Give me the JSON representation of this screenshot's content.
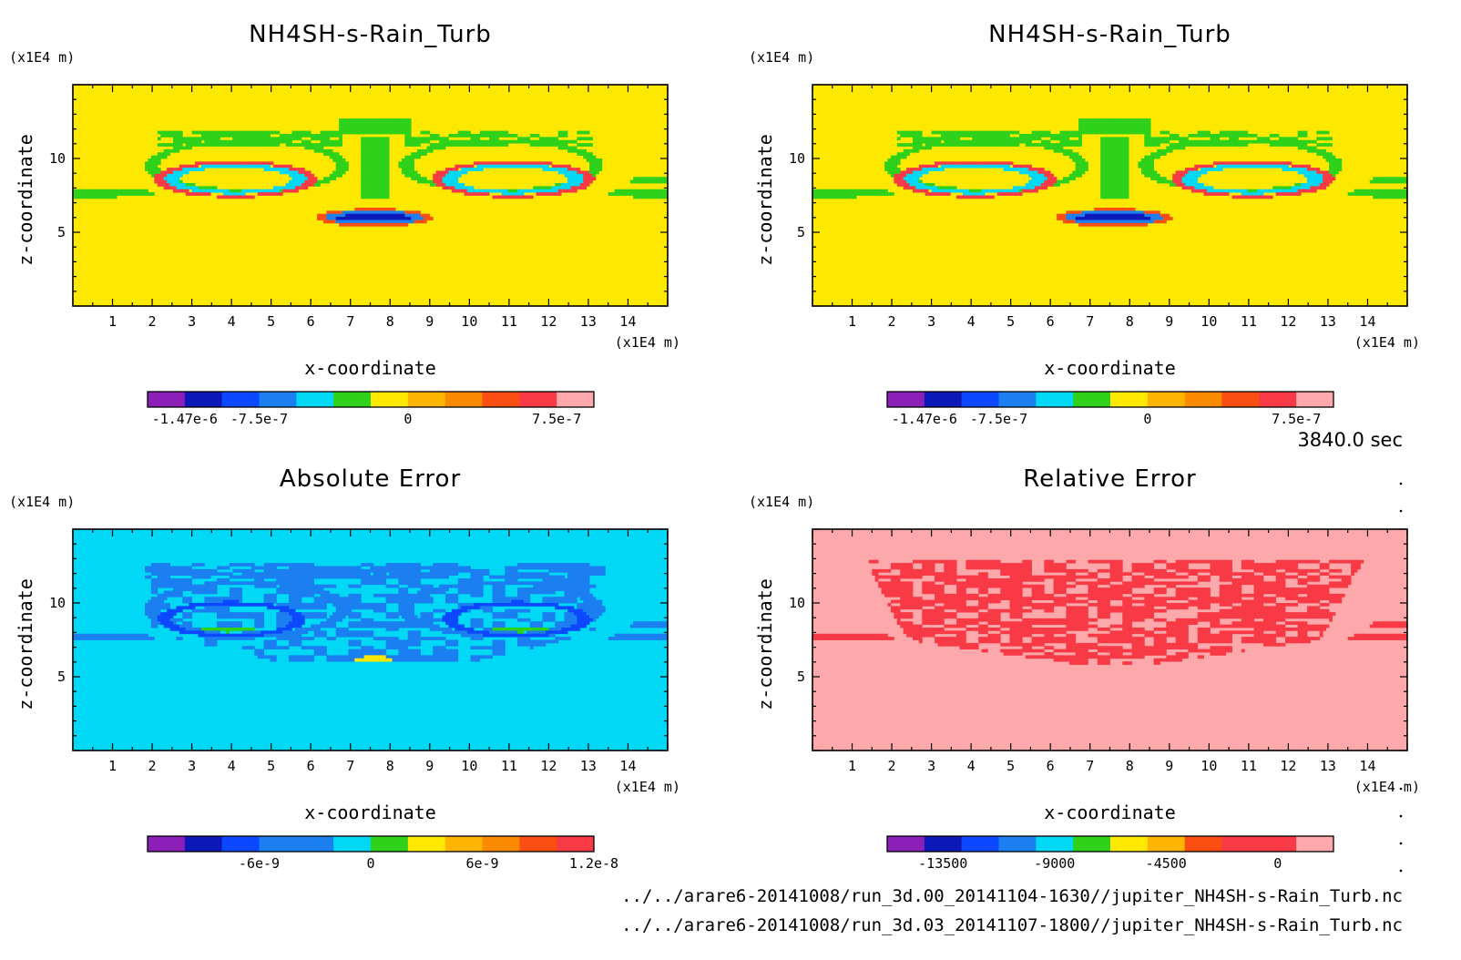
{
  "figure": {
    "time_label": "3840.0 sec",
    "files": [
      "../../arare6-20141008/run_3d.00_20141104-1630//jupiter_NH4SH-s-Rain_Turb.nc",
      "../../arare6-20141008/run_3d.03_20141107-1800//jupiter_NH4SH-s-Rain_Turb.nc"
    ]
  },
  "chart_data": [
    {
      "type": "heatmap",
      "id": "top-left",
      "title": "NH4SH-s-Rain_Turb",
      "xlabel": "x-coordinate",
      "ylabel": "z-coordinate",
      "x_unit": "(x1E4 m)",
      "y_unit": "(x1E4 m)",
      "xlim": [
        0,
        15
      ],
      "ylim": [
        0,
        15
      ],
      "xticks": [
        1,
        2,
        3,
        4,
        5,
        6,
        7,
        8,
        9,
        10,
        11,
        12,
        13,
        14
      ],
      "yticks": [
        5,
        10
      ],
      "pattern": "field",
      "background_level": 6,
      "colorbar": {
        "colors": [
          "#8b1fb8",
          "#0d18b8",
          "#0c48ff",
          "#1b7ff0",
          "#00d8f5",
          "#2fd11a",
          "#fde802",
          "#fdb501",
          "#fa8a00",
          "#fa4e12",
          "#f83a46",
          "#fda9ab"
        ],
        "labels": [
          "-1.47e-6",
          "-7.5e-7",
          "0",
          "7.5e-7"
        ],
        "label_boundaries": [
          0,
          2,
          6,
          10
        ]
      }
    },
    {
      "type": "heatmap",
      "id": "top-right",
      "title": "NH4SH-s-Rain_Turb",
      "xlabel": "x-coordinate",
      "ylabel": "z-coordinate",
      "x_unit": "(x1E4 m)",
      "y_unit": "(x1E4 m)",
      "xlim": [
        0,
        15
      ],
      "ylim": [
        0,
        15
      ],
      "xticks": [
        1,
        2,
        3,
        4,
        5,
        6,
        7,
        8,
        9,
        10,
        11,
        12,
        13,
        14
      ],
      "yticks": [
        5,
        10
      ],
      "pattern": "field",
      "background_level": 6,
      "colorbar": {
        "colors": [
          "#8b1fb8",
          "#0d18b8",
          "#0c48ff",
          "#1b7ff0",
          "#00d8f5",
          "#2fd11a",
          "#fde802",
          "#fdb501",
          "#fa8a00",
          "#fa4e12",
          "#f83a46",
          "#fda9ab"
        ],
        "labels": [
          "-1.47e-6",
          "-7.5e-7",
          "0",
          "7.5e-7"
        ],
        "label_boundaries": [
          0,
          2,
          6,
          10
        ]
      }
    },
    {
      "type": "heatmap",
      "id": "bottom-left",
      "title": "Absolute Error",
      "xlabel": "x-coordinate",
      "ylabel": "z-coordinate",
      "x_unit": "(x1E4 m)",
      "y_unit": "(x1E4 m)",
      "xlim": [
        0,
        15
      ],
      "ylim": [
        0,
        15
      ],
      "xticks": [
        1,
        2,
        3,
        4,
        5,
        6,
        7,
        8,
        9,
        10,
        11,
        12,
        13,
        14
      ],
      "yticks": [
        5,
        10
      ],
      "pattern": "abs",
      "background_level": 5,
      "colorbar": {
        "colors": [
          "#8b1fb8",
          "#0d18b8",
          "#0c48ff",
          "#1b7ff0",
          "#1b7ff0",
          "#00d8f5",
          "#2fd11a",
          "#fde802",
          "#fdb501",
          "#fa8a00",
          "#fa4e12",
          "#f83a46"
        ],
        "labels": [
          "-6e-9",
          "0",
          "6e-9",
          "1.2e-8"
        ],
        "label_boundaries": [
          2,
          5,
          8,
          11
        ]
      }
    },
    {
      "type": "heatmap",
      "id": "bottom-right",
      "title": "Relative Error",
      "xlabel": "x-coordinate",
      "ylabel": "z-coordinate",
      "x_unit": "(x1E4 m)",
      "y_unit": "(x1E4 m)",
      "xlim": [
        0,
        15
      ],
      "ylim": [
        0,
        15
      ],
      "xticks": [
        1,
        2,
        3,
        4,
        5,
        6,
        7,
        8,
        9,
        10,
        11,
        12,
        13,
        14
      ],
      "yticks": [
        5,
        10
      ],
      "pattern": "rel",
      "background_level": 11,
      "colorbar": {
        "colors": [
          "#8b1fb8",
          "#0d18b8",
          "#0c48ff",
          "#1b7ff0",
          "#00d8f5",
          "#2fd11a",
          "#fde802",
          "#fdb501",
          "#fa4e12",
          "#f83a46",
          "#f83a46",
          "#fda9ab"
        ],
        "labels": [
          "-13500",
          "-9000",
          "-4500",
          "0"
        ],
        "label_boundaries": [
          0.5,
          3.5,
          6.5,
          9.5
        ]
      }
    }
  ]
}
